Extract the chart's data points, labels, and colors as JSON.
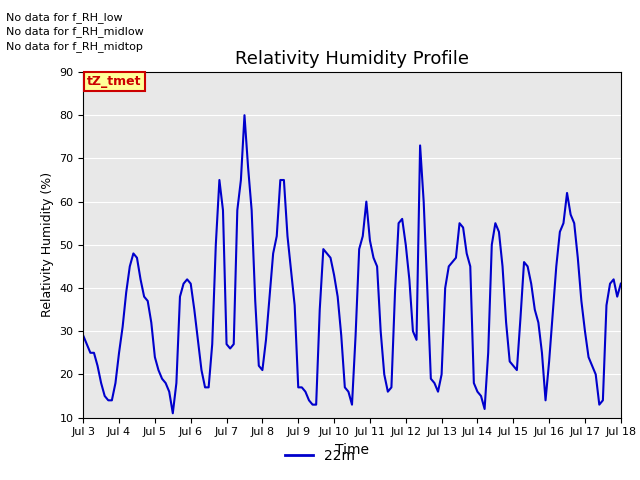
{
  "title": "Relativity Humidity Profile",
  "xlabel": "Time",
  "ylabel": "Relativity Humidity (%)",
  "ylim": [
    10,
    90
  ],
  "yticks": [
    10,
    20,
    30,
    40,
    50,
    60,
    70,
    80,
    90
  ],
  "xtick_labels": [
    "Jul 3",
    "Jul 4",
    "Jul 5",
    "Jul 6",
    "Jul 7",
    "Jul 8",
    "Jul 9",
    "Jul 10",
    "Jul 11",
    "Jul 12",
    "Jul 13",
    "Jul 14",
    "Jul 15",
    "Jul 16",
    "Jul 17",
    "Jul 18"
  ],
  "legend_label": "22m",
  "line_color": "#0000cc",
  "line_width": 1.5,
  "annotations": [
    "No data for f_RH_low",
    "No data for f_RH_midlow",
    "No data for f_RH_midtop"
  ],
  "tZ_tmet_color": "#cc0000",
  "tZ_tmet_bg": "#ffff99",
  "background_color": "#e8e8e8",
  "fig_bg": "#ffffff",
  "x_values": [
    0,
    0.1,
    0.2,
    0.3,
    0.4,
    0.5,
    0.6,
    0.7,
    0.8,
    0.9,
    1.0,
    1.1,
    1.2,
    1.3,
    1.4,
    1.5,
    1.6,
    1.7,
    1.8,
    1.9,
    2.0,
    2.1,
    2.2,
    2.3,
    2.4,
    2.5,
    2.6,
    2.7,
    2.8,
    2.9,
    3.0,
    3.1,
    3.2,
    3.3,
    3.4,
    3.5,
    3.6,
    3.7,
    3.8,
    3.9,
    4.0,
    4.1,
    4.2,
    4.3,
    4.4,
    4.5,
    4.6,
    4.7,
    4.8,
    4.9,
    5.0,
    5.1,
    5.2,
    5.3,
    5.4,
    5.5,
    5.6,
    5.7,
    5.8,
    5.9,
    6.0,
    6.1,
    6.2,
    6.3,
    6.4,
    6.5,
    6.6,
    6.7,
    6.8,
    6.9,
    7.0,
    7.1,
    7.2,
    7.3,
    7.4,
    7.5,
    7.6,
    7.7,
    7.8,
    7.9,
    8.0,
    8.1,
    8.2,
    8.3,
    8.4,
    8.5,
    8.6,
    8.7,
    8.8,
    8.9,
    9.0,
    9.1,
    9.2,
    9.3,
    9.4,
    9.5,
    9.6,
    9.7,
    9.8,
    9.9,
    10.0,
    10.1,
    10.2,
    10.3,
    10.4,
    10.5,
    10.6,
    10.7,
    10.8,
    10.9,
    11.0,
    11.1,
    11.2,
    11.3,
    11.4,
    11.5,
    11.6,
    11.7,
    11.8,
    11.9,
    12.0,
    12.1,
    12.2,
    12.3,
    12.4,
    12.5,
    12.6,
    12.7,
    12.8,
    12.9,
    13.0,
    13.1,
    13.2,
    13.3,
    13.4,
    13.5,
    13.6,
    13.7,
    13.8,
    13.9,
    14.0,
    14.1,
    14.2,
    14.3,
    14.4,
    14.5,
    14.6,
    14.7,
    14.8,
    14.9,
    15.0
  ],
  "y_values": [
    29,
    27,
    25,
    25,
    22,
    18,
    15,
    14,
    14,
    18,
    25,
    31,
    39,
    45,
    48,
    47,
    42,
    38,
    37,
    32,
    24,
    21,
    19,
    18,
    16,
    11,
    18,
    38,
    41,
    42,
    41,
    35,
    28,
    21,
    17,
    17,
    27,
    50,
    65,
    58,
    27,
    26,
    27,
    58,
    65,
    80,
    68,
    58,
    37,
    22,
    21,
    28,
    38,
    48,
    52,
    65,
    65,
    52,
    44,
    36,
    17,
    17,
    16,
    14,
    13,
    13,
    35,
    49,
    48,
    47,
    43,
    38,
    29,
    17,
    16,
    13,
    29,
    49,
    52,
    60,
    51,
    47,
    45,
    30,
    20,
    16,
    17,
    39,
    55,
    56,
    50,
    42,
    30,
    28,
    73,
    60,
    40,
    19,
    18,
    16,
    20,
    40,
    45,
    46,
    47,
    55,
    54,
    48,
    45,
    18,
    16,
    15,
    12,
    25,
    50,
    55,
    53,
    45,
    32,
    23,
    22,
    21,
    33,
    46,
    45,
    41,
    35,
    32,
    25,
    14,
    23,
    34,
    45,
    53,
    55,
    62,
    57,
    55,
    47,
    37,
    30,
    24,
    22,
    20,
    13,
    14,
    36,
    41,
    42,
    38,
    41
  ]
}
